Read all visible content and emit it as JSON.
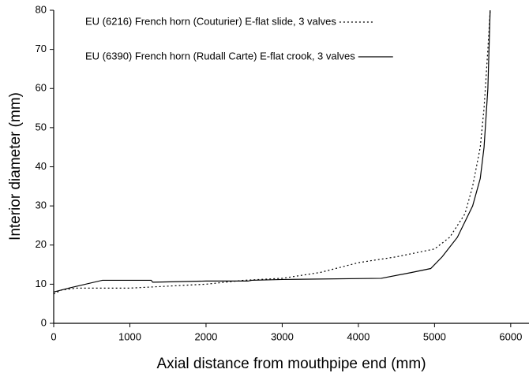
{
  "chart_data": {
    "type": "line",
    "xlabel": "Axial distance from mouthpipe end (mm)",
    "ylabel": "Interior diameter (mm)",
    "xlim": [
      0,
      6240
    ],
    "ylim": [
      0,
      80
    ],
    "xticks": [
      0,
      1000,
      2000,
      3000,
      4000,
      5000,
      6000
    ],
    "yticks": [
      0,
      10,
      20,
      30,
      40,
      50,
      60,
      70,
      80
    ],
    "series": [
      {
        "name": "EU (6216) French horn (Couturier) E-flat slide, 3 valves",
        "color": "#000000",
        "dash": "dotted",
        "x": [
          0,
          100,
          300,
          1000,
          2000,
          2500,
          3000,
          3500,
          4000,
          4500,
          5000,
          5200,
          5400,
          5500,
          5600,
          5650,
          5700,
          5730
        ],
        "values": [
          7.5,
          8.5,
          9,
          9,
          10,
          11,
          11.5,
          13,
          15.5,
          17,
          19,
          22,
          28,
          35,
          45,
          55,
          70,
          80
        ]
      },
      {
        "name": "EU (6390) French horn (Rudall Carte) E-flat crook, 3 valves",
        "color": "#000000",
        "dash": "solid",
        "x": [
          0,
          200,
          640,
          1280,
          1300,
          2000,
          2550,
          2600,
          3000,
          4300,
          4700,
          4950,
          5100,
          5300,
          5400,
          5500,
          5600,
          5650,
          5700,
          5730
        ],
        "values": [
          8,
          9,
          11,
          11,
          10.5,
          10.8,
          10.8,
          11,
          11.2,
          11.5,
          13,
          14,
          17,
          22,
          26,
          30,
          37,
          45,
          60,
          80
        ]
      }
    ]
  }
}
